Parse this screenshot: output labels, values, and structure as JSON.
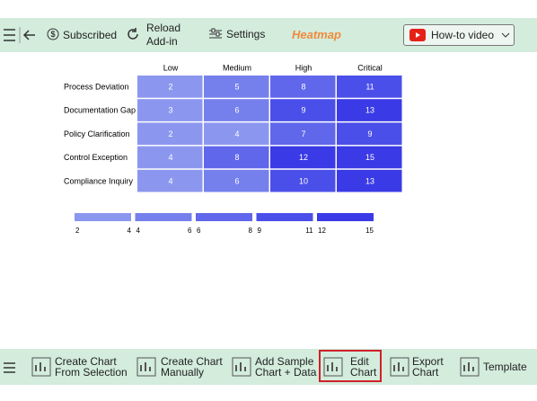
{
  "toolbar": {
    "subscribed": "Subscribed",
    "reload": [
      "Reload",
      "Add-in"
    ],
    "settings": "Settings",
    "title": "Heatmap",
    "video": "How-to video"
  },
  "heatmap": {
    "columns": [
      "Low",
      "Medium",
      "High",
      "Critical"
    ],
    "rows": [
      "Process Deviation",
      "Documentation Gap",
      "Policy Clarification",
      "Control Exception",
      "Compliance Inquiry"
    ],
    "values": [
      [
        2,
        5,
        8,
        11
      ],
      [
        3,
        6,
        9,
        13
      ],
      [
        2,
        4,
        7,
        9
      ],
      [
        4,
        8,
        12,
        15
      ],
      [
        4,
        6,
        10,
        13
      ]
    ],
    "legend": [
      {
        "min": 2,
        "max": 4,
        "color": "#8b97ef"
      },
      {
        "min": 4,
        "max": 6,
        "color": "#7580ed"
      },
      {
        "min": 6,
        "max": 8,
        "color": "#6067eb"
      },
      {
        "min": 9,
        "max": 11,
        "color": "#4b4fe9"
      },
      {
        "min": 12,
        "max": 15,
        "color": "#3a3ae6"
      }
    ]
  },
  "footer": {
    "buttons": [
      [
        "Create Chart",
        "From Selection"
      ],
      [
        "Create Chart",
        "Manually"
      ],
      [
        "Add Sample",
        "Chart + Data"
      ],
      [
        "Edit",
        "Chart"
      ],
      [
        "Export",
        "Chart"
      ],
      [
        "Template"
      ]
    ]
  }
}
